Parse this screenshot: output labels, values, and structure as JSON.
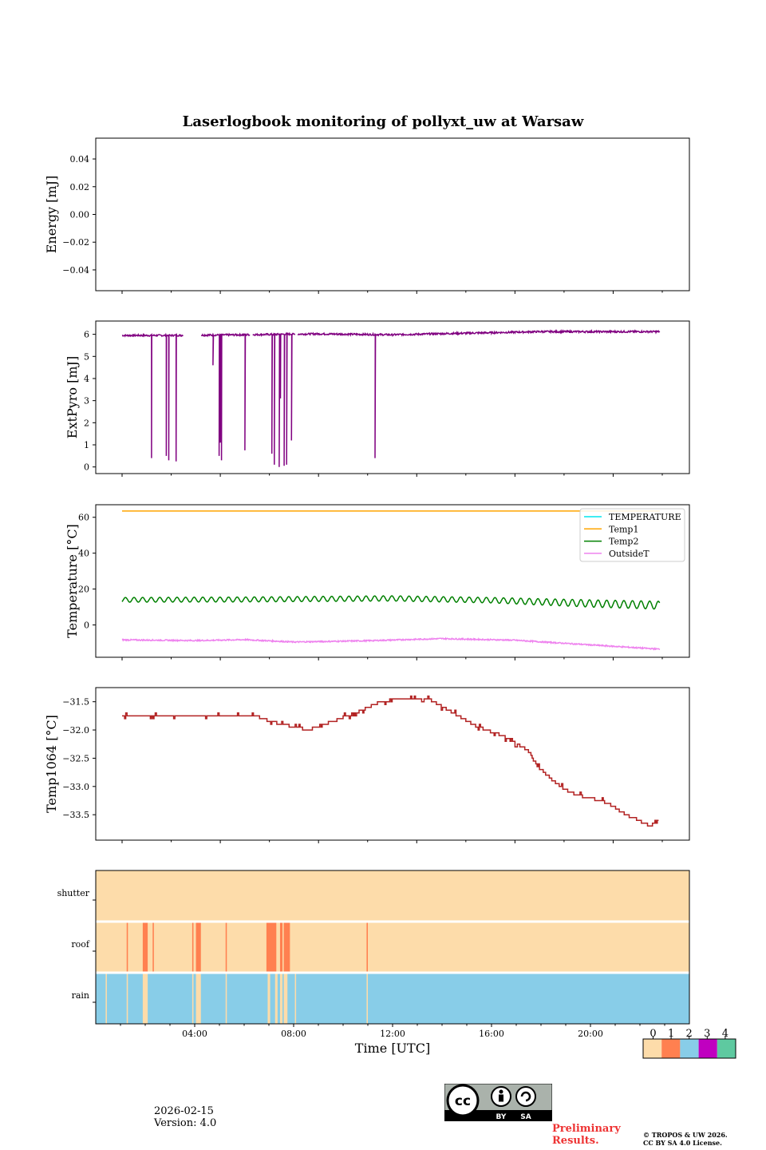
{
  "chart_data": {
    "type": "line",
    "title": "Laserlogbook monitoring of pollyxt_uw at Warsaw",
    "xlabel": "Time [UTC]",
    "x_range_hours": [
      0,
      24
    ],
    "x_ticks": [
      "04:00",
      "08:00",
      "12:00",
      "16:00",
      "20:00"
    ],
    "panels": [
      {
        "name": "energy",
        "ylabel": "Energy [mJ]",
        "ylim": [
          -0.055,
          0.055
        ],
        "yticks": [
          0.04,
          0.02,
          0.0,
          -0.02,
          -0.04
        ],
        "ytick_labels": [
          "0.04",
          "0.02",
          "0.00",
          "−0.02",
          "−0.04"
        ],
        "series": []
      },
      {
        "name": "extpyro",
        "ylabel": "ExtPyro [mJ]",
        "ylim": [
          -0.3,
          6.6
        ],
        "yticks": [
          0,
          1,
          2,
          3,
          4,
          5,
          6
        ],
        "ytick_labels": [
          "0",
          "1",
          "2",
          "3",
          "4",
          "5",
          "6"
        ],
        "series": [
          {
            "name": "ExtPyro",
            "color": "#800080",
            "baseline": [
              [
                1.0,
                5.95
              ],
              [
                3.0,
                5.95
              ],
              [
                6.0,
                5.98
              ],
              [
                9.0,
                6.02
              ],
              [
                12.0,
                5.98
              ],
              [
                15.0,
                6.05
              ],
              [
                18.0,
                6.12
              ],
              [
                22.9,
                6.12
              ]
            ],
            "noise": 0.04,
            "dropouts": [
              [
                2.2,
                0.4
              ],
              [
                2.8,
                0.5
              ],
              [
                2.9,
                0.3
              ],
              [
                3.2,
                0.25
              ],
              [
                4.7,
                4.6
              ],
              [
                4.95,
                0.5
              ],
              [
                5.05,
                0.3
              ],
              [
                5.0,
                1.1
              ],
              [
                6.0,
                0.75
              ],
              [
                7.1,
                0.6
              ],
              [
                7.2,
                0.1
              ],
              [
                7.4,
                0.0
              ],
              [
                7.45,
                3.1
              ],
              [
                7.6,
                0.05
              ],
              [
                7.7,
                0.1
              ],
              [
                7.9,
                1.2
              ],
              [
                11.3,
                0.4
              ]
            ],
            "gaps": [
              [
                3.5,
                4.2
              ],
              [
                6.2,
                6.3
              ],
              [
                8.05,
                8.15
              ]
            ]
          }
        ]
      },
      {
        "name": "temperature",
        "ylabel": "Temperature [°C]",
        "ylim": [
          -18,
          67
        ],
        "yticks": [
          0,
          20,
          40,
          60
        ],
        "ytick_labels": [
          "0",
          "20",
          "40",
          "60"
        ],
        "legend": {
          "location": "upper-right",
          "entries": [
            {
              "label": "TEMPERATURE",
              "color": "#00e5ee"
            },
            {
              "label": "Temp1",
              "color": "#ffa500"
            },
            {
              "label": "Temp2",
              "color": "#008000"
            },
            {
              "label": "OutsideT",
              "color": "#ee82ee"
            }
          ]
        },
        "series": [
          {
            "name": "Temp1",
            "color": "#ffa500",
            "points": [
              [
                1.0,
                63.5
              ],
              [
                22.9,
                63.5
              ]
            ]
          },
          {
            "name": "Temp2",
            "color": "#008000",
            "mean": [
              [
                1.0,
                14.0
              ],
              [
                6.0,
                14.2
              ],
              [
                12.0,
                14.8
              ],
              [
                16.0,
                13.8
              ],
              [
                20.0,
                12.0
              ],
              [
                22.9,
                11.0
              ]
            ],
            "oscillation_amplitude": [
              [
                1.0,
                1.3
              ],
              [
                16.0,
                1.5
              ],
              [
                20.0,
                2.0
              ],
              [
                22.9,
                2.2
              ]
            ],
            "oscillation_period_hours": 0.35
          },
          {
            "name": "OutsideT",
            "color": "#ee82ee",
            "points": [
              [
                1.0,
                -8.3
              ],
              [
                4.0,
                -8.7
              ],
              [
                6.0,
                -8.2
              ],
              [
                8.0,
                -9.5
              ],
              [
                11.0,
                -8.8
              ],
              [
                14.0,
                -7.6
              ],
              [
                17.0,
                -8.5
              ],
              [
                19.0,
                -10.2
              ],
              [
                22.9,
                -13.5
              ]
            ],
            "noise": 0.35
          }
        ]
      },
      {
        "name": "temp1064",
        "ylabel": "Temp1064 [°C]",
        "ylim": [
          -33.95,
          -31.25
        ],
        "yticks": [
          -31.5,
          -32.0,
          -32.5,
          -33.0,
          -33.5
        ],
        "ytick_labels": [
          "−31.5",
          "−32.0",
          "−32.5",
          "−33.0",
          "−33.5"
        ],
        "series": [
          {
            "name": "Temp1064",
            "color": "#b22222",
            "points": [
              [
                1.0,
                -31.75
              ],
              [
                4.0,
                -31.75
              ],
              [
                6.5,
                -31.75
              ],
              [
                7.0,
                -31.85
              ],
              [
                8.0,
                -31.95
              ],
              [
                8.5,
                -32.0
              ],
              [
                9.0,
                -31.95
              ],
              [
                9.5,
                -31.85
              ],
              [
                10.5,
                -31.7
              ],
              [
                11.5,
                -31.5
              ],
              [
                12.5,
                -31.45
              ],
              [
                13.5,
                -31.45
              ],
              [
                14.5,
                -31.7
              ],
              [
                15.5,
                -31.95
              ],
              [
                16.5,
                -32.1
              ],
              [
                17.5,
                -32.35
              ],
              [
                18.0,
                -32.7
              ],
              [
                19.0,
                -33.05
              ],
              [
                19.5,
                -33.15
              ],
              [
                20.5,
                -33.25
              ],
              [
                21.0,
                -33.35
              ],
              [
                21.5,
                -33.5
              ],
              [
                22.0,
                -33.6
              ],
              [
                22.5,
                -33.7
              ],
              [
                22.9,
                -33.6
              ]
            ]
          }
        ]
      }
    ],
    "status_panel": {
      "rows": [
        "shutter",
        "roof",
        "rain"
      ],
      "colorbar": {
        "ticks": [
          "0",
          "1",
          "2",
          "3",
          "4"
        ],
        "colors": [
          "#fddcaa",
          "#ff8050",
          "#88cde8",
          "#c000c0",
          "#5ec9a0"
        ]
      },
      "shutter": {
        "default": 0,
        "segments": []
      },
      "roof": {
        "default": 0,
        "segments": [
          [
            1.25,
            1.3,
            1
          ],
          [
            1.9,
            2.1,
            1
          ],
          [
            2.3,
            2.35,
            1
          ],
          [
            3.9,
            3.95,
            1
          ],
          [
            4.05,
            4.25,
            1
          ],
          [
            5.25,
            5.3,
            1
          ],
          [
            6.9,
            7.3,
            1
          ],
          [
            7.45,
            7.55,
            1
          ],
          [
            7.6,
            7.85,
            1
          ],
          [
            10.95,
            11.0,
            1
          ]
        ]
      },
      "rain": {
        "default": 2,
        "segments": [
          [
            0.4,
            0.45,
            0
          ],
          [
            1.25,
            1.3,
            0
          ],
          [
            1.9,
            2.1,
            0
          ],
          [
            3.9,
            3.95,
            0
          ],
          [
            4.05,
            4.25,
            0
          ],
          [
            5.25,
            5.3,
            0
          ],
          [
            6.95,
            7.05,
            0
          ],
          [
            7.25,
            7.35,
            0
          ],
          [
            7.45,
            7.55,
            0
          ],
          [
            7.6,
            7.75,
            0
          ],
          [
            8.05,
            8.1,
            0
          ],
          [
            10.95,
            11.0,
            0
          ]
        ]
      }
    }
  },
  "footer": {
    "date": "2026-02-15",
    "version": "Version: 4.0",
    "preliminary_1": "Preliminary",
    "preliminary_2": "Results.",
    "copyright_1": "© TROPOS & UW 2026.",
    "copyright_2": "CC BY SA 4.0 License.",
    "license_badge": {
      "cc": "cc",
      "by": "BY",
      "sa": "SA"
    }
  }
}
